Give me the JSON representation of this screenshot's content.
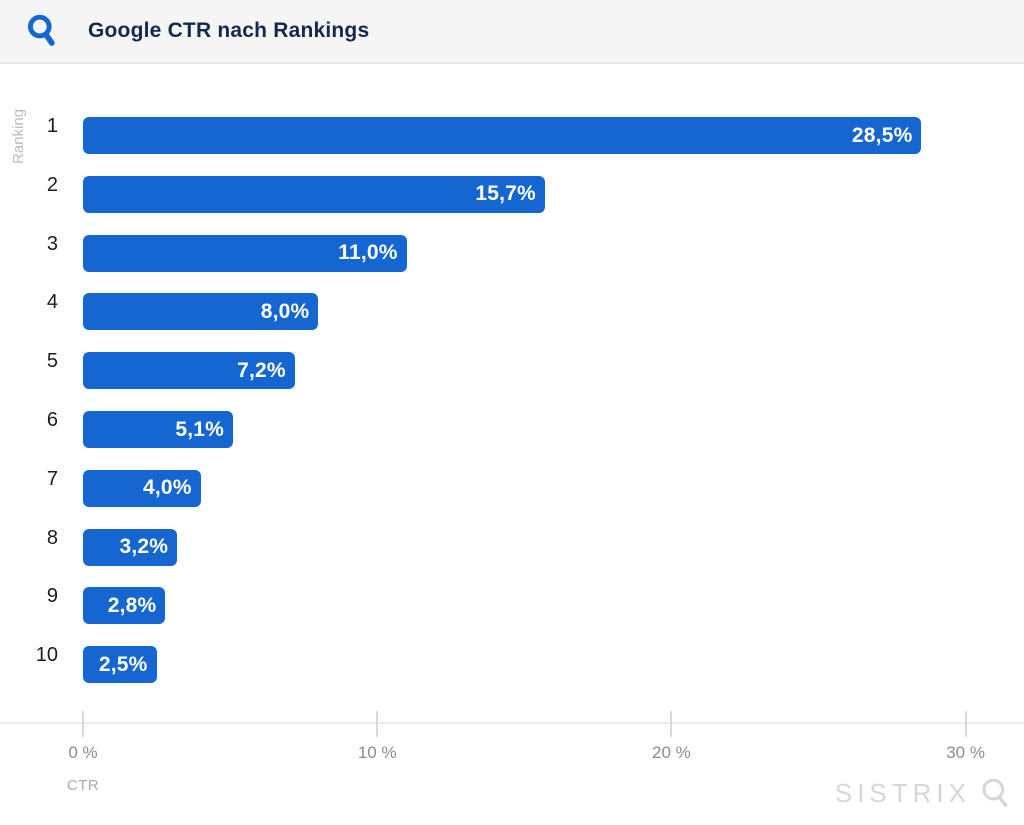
{
  "header": {
    "title": "Google CTR nach Rankings"
  },
  "chart_data": {
    "type": "bar",
    "orientation": "horizontal",
    "title": "Google CTR nach Rankings",
    "ylabel": "Ranking",
    "xlabel": "CTR",
    "categories": [
      "1",
      "2",
      "3",
      "4",
      "5",
      "6",
      "7",
      "8",
      "9",
      "10"
    ],
    "values": [
      28.5,
      15.7,
      11.0,
      8.0,
      7.2,
      5.1,
      4.0,
      3.2,
      2.8,
      2.5
    ],
    "value_labels": [
      "28,5%",
      "15,7%",
      "11,0%",
      "8,0%",
      "7,2%",
      "5,1%",
      "4,0%",
      "3,2%",
      "2,8%",
      "2,5%"
    ],
    "x_ticks": [
      0,
      10,
      20,
      30
    ],
    "x_tick_labels": [
      "0 %",
      "10 %",
      "20 %",
      "30 %"
    ],
    "xlim": [
      0,
      31.6
    ],
    "grid": false,
    "legend": "none",
    "bar_color": "#1666d2"
  },
  "colors": {
    "accent_blue": "#1666d2",
    "title_navy": "#15294d",
    "axis_gray": "#8c8c8c",
    "watermark_gray": "#d7d7d7"
  },
  "watermark": {
    "text": "SISTRIX",
    "icon": "magnifier-icon"
  }
}
